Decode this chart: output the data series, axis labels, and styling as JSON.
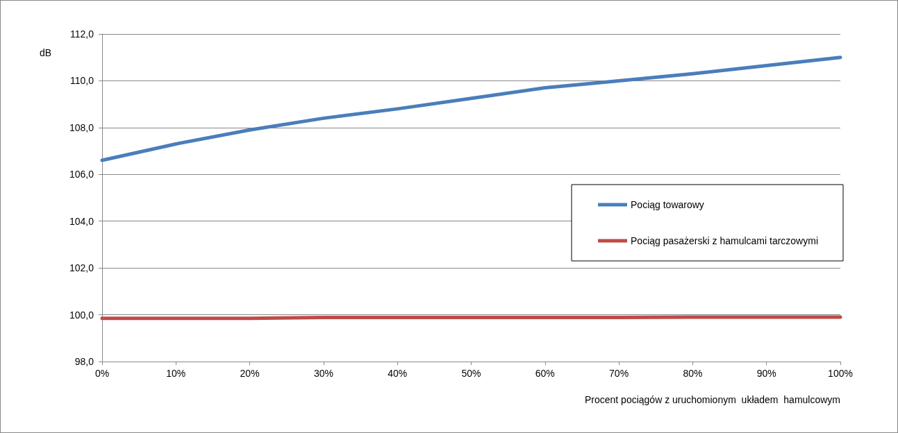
{
  "chart_data": {
    "type": "line",
    "ylabel": "dB",
    "xlabel": "Procent pociągów z uruchomionym  układem  hamulcowym",
    "categories": [
      "0%",
      "10%",
      "20%",
      "30%",
      "40%",
      "50%",
      "60%",
      "70%",
      "80%",
      "90%",
      "100%"
    ],
    "series": [
      {
        "name": "Pociąg towarowy",
        "color": "#4a7ebb",
        "values": [
          106.6,
          107.3,
          107.9,
          108.4,
          108.8,
          109.25,
          109.7,
          110.0,
          110.3,
          110.65,
          111.0
        ]
      },
      {
        "name": "Pociąg pasażerski z hamulcami tarczowymi",
        "color": "#be4b48",
        "values": [
          99.85,
          99.85,
          99.85,
          99.88,
          99.88,
          99.88,
          99.88,
          99.88,
          99.9,
          99.9,
          99.9
        ]
      }
    ],
    "ylim": [
      98,
      112
    ],
    "yticks": [
      {
        "value": 98,
        "label": "98,0"
      },
      {
        "value": 100,
        "label": "100,0"
      },
      {
        "value": 102,
        "label": "102,0"
      },
      {
        "value": 104,
        "label": "104,0"
      },
      {
        "value": 106,
        "label": "106,0"
      },
      {
        "value": 108,
        "label": "108,0"
      },
      {
        "value": 110,
        "label": "110,0"
      },
      {
        "value": 112,
        "label": "112,0"
      }
    ],
    "grid": "y",
    "legend": "right",
    "marker": "none",
    "line_style": "solid"
  }
}
